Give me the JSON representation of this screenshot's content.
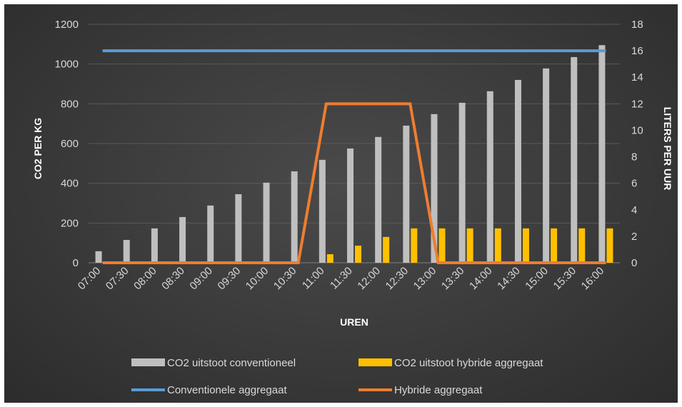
{
  "chart_data": {
    "type": "bar",
    "categories": [
      "07:00",
      "07:30",
      "08:00",
      "08:30",
      "09:00",
      "09:30",
      "10:00",
      "10:30",
      "11:00",
      "11:30",
      "12:00",
      "12:30",
      "13:00",
      "13:30",
      "14:00",
      "14:30",
      "15:00",
      "15:30",
      "16:00"
    ],
    "series": [
      {
        "name": "CO2 uitstoot conventioneel",
        "type": "bar",
        "axis": "left",
        "color": "#bfbfbf",
        "values": [
          58,
          115,
          173,
          230,
          288,
          345,
          403,
          460,
          518,
          575,
          633,
          690,
          748,
          805,
          863,
          920,
          978,
          1035,
          1095
        ]
      },
      {
        "name": "CO2  uitstoot hybride aggregaat",
        "type": "bar",
        "axis": "left",
        "color": "#ffc000",
        "values": [
          0,
          0,
          0,
          0,
          0,
          0,
          0,
          0,
          43,
          86,
          130,
          173,
          173,
          173,
          173,
          173,
          173,
          173,
          173
        ]
      },
      {
        "name": "Conventionele aggregaat",
        "type": "line",
        "axis": "right",
        "color": "#5b9bd5",
        "values": [
          16,
          16,
          16,
          16,
          16,
          16,
          16,
          16,
          16,
          16,
          16,
          16,
          16,
          16,
          16,
          16,
          16,
          16,
          16
        ]
      },
      {
        "name": "Hybride aggregaat",
        "type": "line",
        "axis": "right",
        "color": "#ed7d31",
        "values": [
          0,
          0,
          0,
          0,
          0,
          0,
          0,
          0,
          12,
          12,
          12,
          12,
          0,
          0,
          0,
          0,
          0,
          0,
          0
        ]
      }
    ],
    "xlabel": "UREN",
    "ylabel": "CO2 PER KG",
    "y2label": "LITERS PER UUR",
    "ylim": [
      0,
      1200
    ],
    "y2lim": [
      0,
      18
    ],
    "yticks": [
      "0",
      "200",
      "400",
      "600",
      "800",
      "1000",
      "1200"
    ],
    "y2ticks": [
      "0",
      "2",
      "4",
      "6",
      "8",
      "10",
      "12",
      "14",
      "16",
      "18"
    ],
    "grid": true,
    "legend_position": "bottom"
  }
}
